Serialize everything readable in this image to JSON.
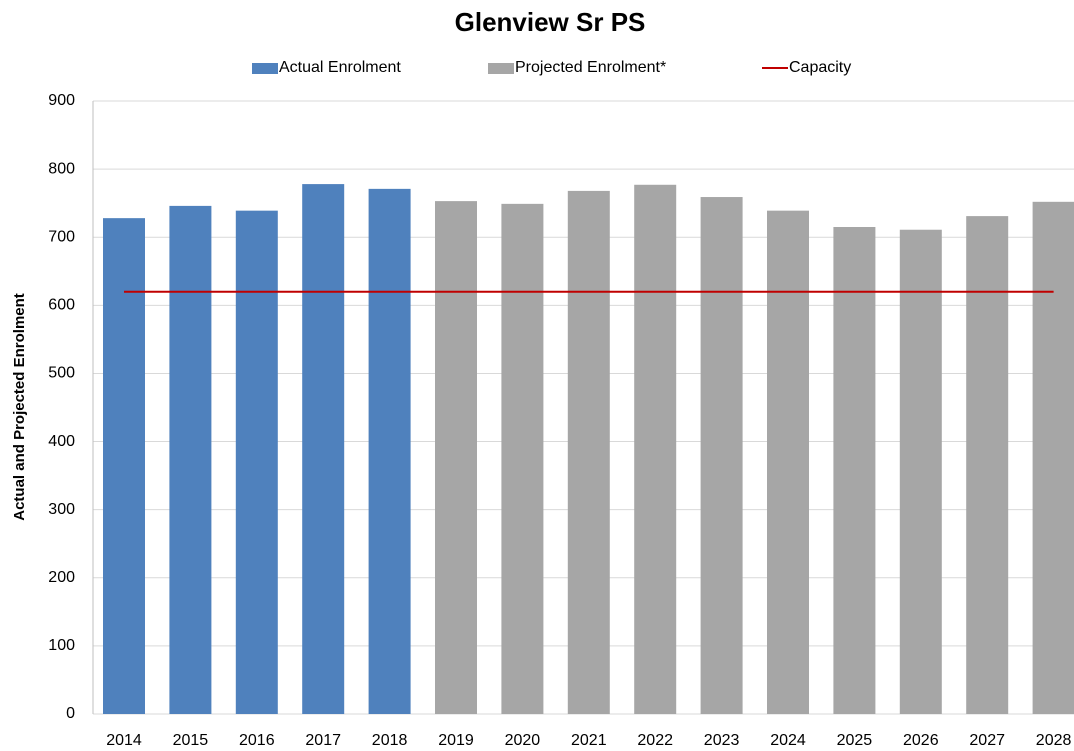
{
  "chart_data": {
    "type": "bar",
    "title": "Glenview Sr PS",
    "y_label": "Actual and Projected Enrolment",
    "categories": [
      "2014",
      "2015",
      "2016",
      "2017",
      "2018",
      "2019",
      "2020",
      "2021",
      "2022",
      "2023",
      "2024",
      "2025",
      "2026",
      "2027",
      "2028"
    ],
    "series": [
      {
        "name": "Actual Enrolment",
        "color": "#4f81bd",
        "values": [
          728,
          746,
          739,
          778,
          771,
          null,
          null,
          null,
          null,
          null,
          null,
          null,
          null,
          null,
          null
        ]
      },
      {
        "name": "Projected Enrolment*",
        "color": "#a6a6a6",
        "values": [
          null,
          null,
          null,
          null,
          null,
          753,
          749,
          768,
          777,
          759,
          739,
          715,
          711,
          731,
          752
        ]
      },
      {
        "name": "Capacity",
        "color": "#c00000",
        "type": "line",
        "values": [
          620,
          620,
          620,
          620,
          620,
          620,
          620,
          620,
          620,
          620,
          620,
          620,
          620,
          620,
          620
        ]
      }
    ],
    "ylim": [
      0,
      900
    ],
    "yticks": [
      0,
      100,
      200,
      300,
      400,
      500,
      600,
      700,
      800,
      900
    ],
    "grid": true,
    "legend": "top"
  }
}
